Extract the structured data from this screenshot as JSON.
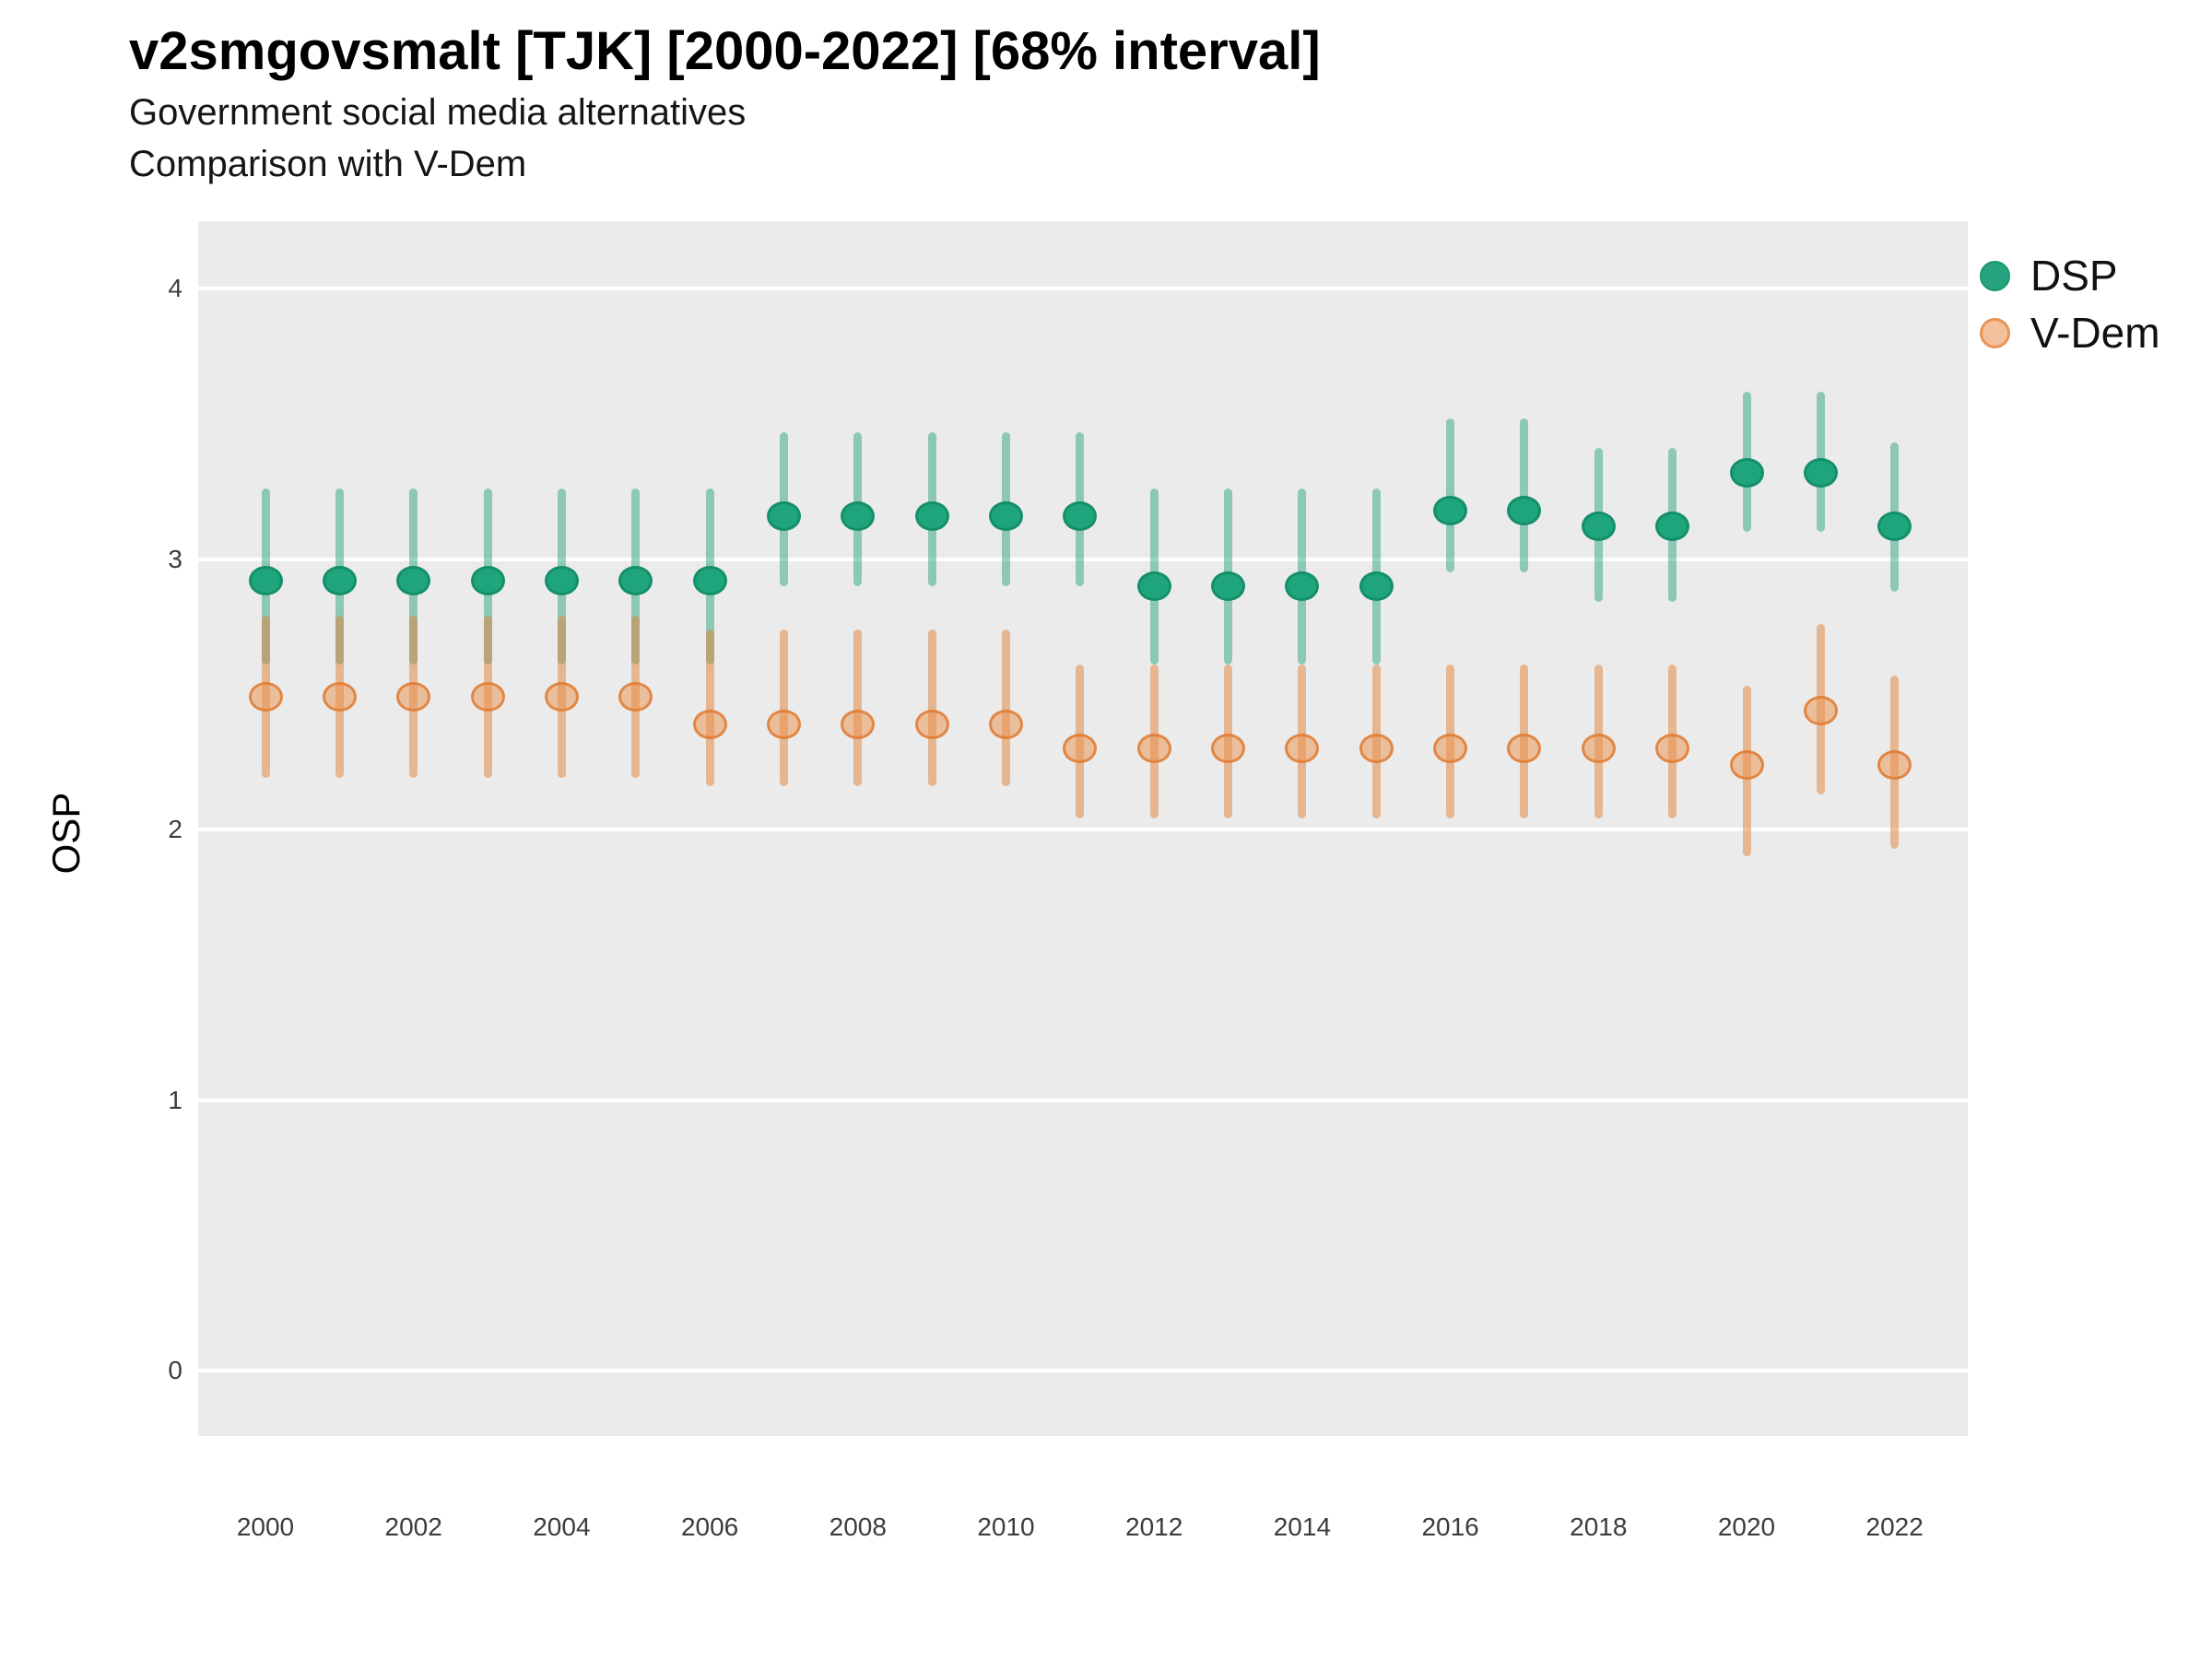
{
  "chart_data": {
    "type": "scatter",
    "title": "v2smgovsmalt [TJK] [2000-2022] [68% interval]",
    "subtitle1": "Government social media alternatives",
    "subtitle2": "Comparison with V-Dem",
    "ylabel": "OSP",
    "xlabel": "",
    "ylim": [
      -0.25,
      4.25
    ],
    "grid": "on",
    "legend_position": "right",
    "y_ticks": [
      0,
      1,
      2,
      3,
      4
    ],
    "x_tick_labels": [
      "2000",
      "2002",
      "2004",
      "2006",
      "2008",
      "2010",
      "2012",
      "2014",
      "2016",
      "2018",
      "2020",
      "2022"
    ],
    "x_tick_years": [
      2000,
      2002,
      2004,
      2006,
      2008,
      2010,
      2012,
      2014,
      2016,
      2018,
      2020,
      2022
    ],
    "legend": [
      {
        "label": "DSP",
        "swatch_fill": "#27a47f",
        "swatch_stroke": "#1a States96e"
      },
      {
        "label": "V-Dem",
        "swatch_fill": "#f3c09c",
        "swatch_stroke": "#e79556"
      }
    ],
    "series": [
      {
        "name": "DSP",
        "point_fill": "#1ea57c",
        "point_stroke": "#148f6a",
        "bar_color": "rgba(27,158,119,0.45)",
        "points": [
          {
            "year": 2000,
            "y": 2.92,
            "lo": 2.61,
            "hi": 3.26
          },
          {
            "year": 2001,
            "y": 2.92,
            "lo": 2.61,
            "hi": 3.26
          },
          {
            "year": 2002,
            "y": 2.92,
            "lo": 2.61,
            "hi": 3.26
          },
          {
            "year": 2003,
            "y": 2.92,
            "lo": 2.61,
            "hi": 3.26
          },
          {
            "year": 2004,
            "y": 2.92,
            "lo": 2.61,
            "hi": 3.26
          },
          {
            "year": 2005,
            "y": 2.92,
            "lo": 2.61,
            "hi": 3.26
          },
          {
            "year": 2006,
            "y": 2.92,
            "lo": 2.61,
            "hi": 3.26
          },
          {
            "year": 2007,
            "y": 3.16,
            "lo": 2.9,
            "hi": 3.47
          },
          {
            "year": 2008,
            "y": 3.16,
            "lo": 2.9,
            "hi": 3.47
          },
          {
            "year": 2009,
            "y": 3.16,
            "lo": 2.9,
            "hi": 3.47
          },
          {
            "year": 2010,
            "y": 3.16,
            "lo": 2.9,
            "hi": 3.47
          },
          {
            "year": 2011,
            "y": 3.16,
            "lo": 2.9,
            "hi": 3.47
          },
          {
            "year": 2012,
            "y": 2.9,
            "lo": 2.61,
            "hi": 3.26
          },
          {
            "year": 2013,
            "y": 2.9,
            "lo": 2.61,
            "hi": 3.26
          },
          {
            "year": 2014,
            "y": 2.9,
            "lo": 2.61,
            "hi": 3.26
          },
          {
            "year": 2015,
            "y": 2.9,
            "lo": 2.61,
            "hi": 3.26
          },
          {
            "year": 2016,
            "y": 3.18,
            "lo": 2.95,
            "hi": 3.52
          },
          {
            "year": 2017,
            "y": 3.18,
            "lo": 2.95,
            "hi": 3.52
          },
          {
            "year": 2018,
            "y": 3.12,
            "lo": 2.84,
            "hi": 3.41
          },
          {
            "year": 2019,
            "y": 3.12,
            "lo": 2.84,
            "hi": 3.41
          },
          {
            "year": 2020,
            "y": 3.32,
            "lo": 3.1,
            "hi": 3.62
          },
          {
            "year": 2021,
            "y": 3.32,
            "lo": 3.1,
            "hi": 3.62
          },
          {
            "year": 2022,
            "y": 3.12,
            "lo": 2.88,
            "hi": 3.43
          }
        ]
      },
      {
        "name": "V-Dem",
        "point_fill": "rgba(233,144,75,0.5)",
        "point_stroke": "rgba(224,122,48,0.8)",
        "bar_color": "rgba(226,130,55,0.5)",
        "points": [
          {
            "year": 2000,
            "y": 2.49,
            "lo": 2.19,
            "hi": 2.79
          },
          {
            "year": 2001,
            "y": 2.49,
            "lo": 2.19,
            "hi": 2.79
          },
          {
            "year": 2002,
            "y": 2.49,
            "lo": 2.19,
            "hi": 2.79
          },
          {
            "year": 2003,
            "y": 2.49,
            "lo": 2.19,
            "hi": 2.79
          },
          {
            "year": 2004,
            "y": 2.49,
            "lo": 2.19,
            "hi": 2.79
          },
          {
            "year": 2005,
            "y": 2.49,
            "lo": 2.19,
            "hi": 2.79
          },
          {
            "year": 2006,
            "y": 2.39,
            "lo": 2.16,
            "hi": 2.74
          },
          {
            "year": 2007,
            "y": 2.39,
            "lo": 2.16,
            "hi": 2.74
          },
          {
            "year": 2008,
            "y": 2.39,
            "lo": 2.16,
            "hi": 2.74
          },
          {
            "year": 2009,
            "y": 2.39,
            "lo": 2.16,
            "hi": 2.74
          },
          {
            "year": 2010,
            "y": 2.39,
            "lo": 2.16,
            "hi": 2.74
          },
          {
            "year": 2011,
            "y": 2.3,
            "lo": 2.04,
            "hi": 2.61
          },
          {
            "year": 2012,
            "y": 2.3,
            "lo": 2.04,
            "hi": 2.61
          },
          {
            "year": 2013,
            "y": 2.3,
            "lo": 2.04,
            "hi": 2.61
          },
          {
            "year": 2014,
            "y": 2.3,
            "lo": 2.04,
            "hi": 2.61
          },
          {
            "year": 2015,
            "y": 2.3,
            "lo": 2.04,
            "hi": 2.61
          },
          {
            "year": 2016,
            "y": 2.3,
            "lo": 2.04,
            "hi": 2.61
          },
          {
            "year": 2017,
            "y": 2.3,
            "lo": 2.04,
            "hi": 2.61
          },
          {
            "year": 2018,
            "y": 2.3,
            "lo": 2.04,
            "hi": 2.61
          },
          {
            "year": 2019,
            "y": 2.3,
            "lo": 2.04,
            "hi": 2.61
          },
          {
            "year": 2020,
            "y": 2.24,
            "lo": 1.9,
            "hi": 2.53
          },
          {
            "year": 2021,
            "y": 2.44,
            "lo": 2.13,
            "hi": 2.76
          },
          {
            "year": 2022,
            "y": 2.24,
            "lo": 1.93,
            "hi": 2.57
          }
        ]
      }
    ]
  }
}
